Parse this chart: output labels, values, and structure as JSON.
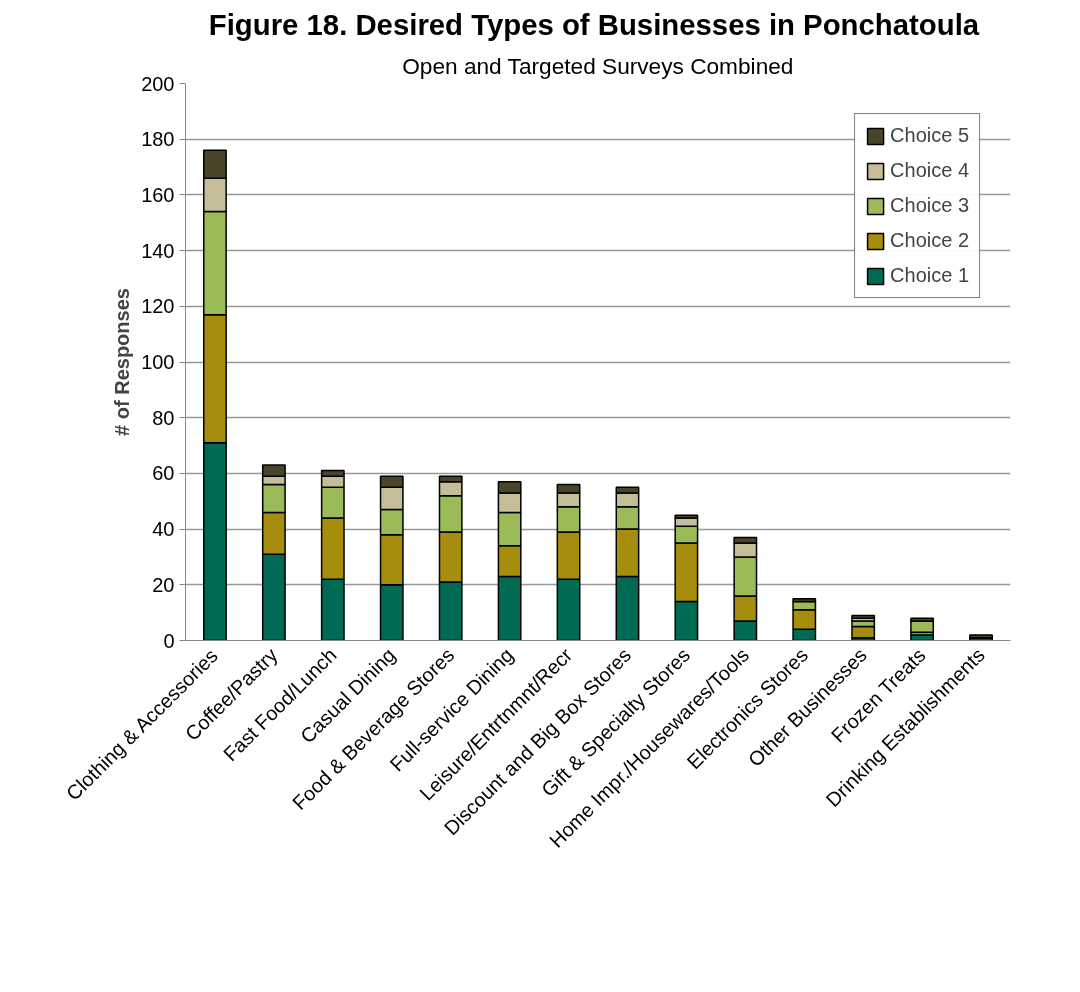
{
  "chart_data": {
    "type": "bar",
    "stacked": true,
    "title": "Figure 18.  Desired Types of Businesses in Ponchatoula",
    "subtitle": "Open and Targeted Surveys Combined",
    "ylabel": "# of Responses",
    "categories": [
      "Clothing & Accessories",
      "Coffee/Pastry",
      "Fast Food/Lunch",
      "Casual Dining",
      "Food & Beverage Stores",
      "Full-service Dining",
      "Leisure/Entrtnmnt/Recr",
      "Discount and Big Box Stores",
      "Gift & Specialty Stores",
      "Home Impr./Housewares/Tools",
      "Electronics Stores",
      "Other Businesses",
      "Frozen Treats",
      "Drinking Establishments"
    ],
    "series": [
      {
        "name": "Choice 1",
        "color": "#006b54",
        "values": [
          71,
          31,
          22,
          20,
          21,
          23,
          22,
          23,
          14,
          7,
          4,
          1,
          2,
          1
        ]
      },
      {
        "name": "Choice 2",
        "color": "#a68d0e",
        "values": [
          46,
          15,
          22,
          18,
          18,
          11,
          17,
          17,
          21,
          9,
          7,
          4,
          1,
          0
        ]
      },
      {
        "name": "Choice 3",
        "color": "#9bbb59",
        "values": [
          37,
          10,
          11,
          9,
          13,
          12,
          9,
          8,
          6,
          14,
          3,
          2,
          4,
          0
        ]
      },
      {
        "name": "Choice 4",
        "color": "#c4bd97",
        "values": [
          12,
          3,
          4,
          8,
          5,
          7,
          5,
          5,
          3,
          5,
          0,
          1,
          0,
          0
        ]
      },
      {
        "name": "Choice 5",
        "color": "#4a452a",
        "values": [
          10,
          4,
          2,
          4,
          2,
          4,
          3,
          2,
          1,
          2,
          1,
          1,
          1,
          1
        ]
      }
    ],
    "ylim": [
      0,
      200
    ],
    "yticks": [
      0,
      20,
      40,
      60,
      80,
      100,
      120,
      140,
      160,
      180,
      200
    ],
    "grid": "y",
    "legend": "top right"
  }
}
